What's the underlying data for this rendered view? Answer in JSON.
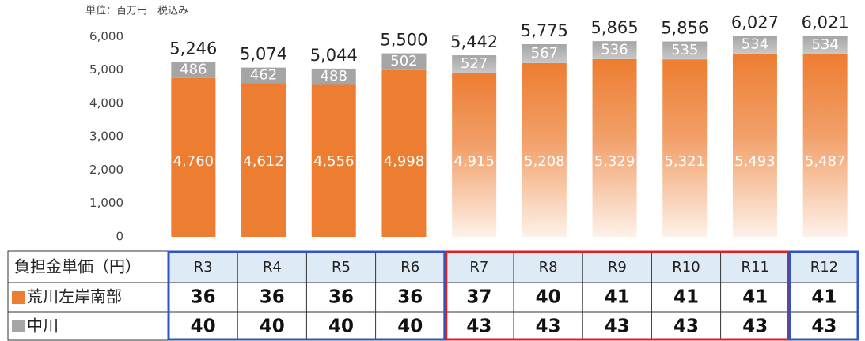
{
  "chart_data": {
    "type": "stacked_bar",
    "unit_note": "単位：百万円　税込み",
    "categories": [
      "R3",
      "R4",
      "R5",
      "R6",
      "R7",
      "R8",
      "R9",
      "R10",
      "R11",
      "R12"
    ],
    "series": [
      {
        "name": "荒川左岸南部",
        "color": "#ed7d31",
        "values": [
          4760,
          4612,
          4556,
          4998,
          4915,
          5208,
          5329,
          5321,
          5493,
          5487
        ],
        "value_labels": [
          "4,760",
          "4,612",
          "4,556",
          "4,998",
          "4,915",
          "5,208",
          "5,329",
          "5,321",
          "5,493",
          "5,487"
        ]
      },
      {
        "name": "中川",
        "color": "#a5a5a5",
        "values": [
          486,
          462,
          488,
          502,
          527,
          567,
          536,
          535,
          534,
          534
        ]
      }
    ],
    "totals": [
      5246,
      5074,
      5044,
      5500,
      5442,
      5775,
      5865,
      5856,
      6027,
      6021
    ],
    "total_labels": [
      "5,246",
      "5,074",
      "5,044",
      "5,500",
      "5,442",
      "5,775",
      "5,865",
      "5,856",
      "6,027",
      "6,021"
    ],
    "faded": [
      false,
      false,
      false,
      false,
      true,
      true,
      true,
      true,
      true,
      true
    ],
    "ylim": [
      0,
      7100
    ],
    "yticks": [
      0,
      {
        "value": 1000,
        "label": "1,000"
      },
      {
        "value": 2000,
        "label": "2,000"
      },
      {
        "value": 3000,
        "label": "3,000"
      },
      {
        "value": 4000,
        "label": "4,000"
      },
      {
        "value": 5000,
        "label": "5,000"
      },
      {
        "value": 6000,
        "label": "6,000"
      }
    ]
  },
  "table": {
    "header": "負担金単価（円）",
    "rows": [
      [
        36,
        36,
        36,
        36,
        37,
        40,
        41,
        41,
        41,
        41
      ],
      [
        40,
        40,
        40,
        40,
        43,
        43,
        43,
        43,
        43,
        43
      ]
    ]
  }
}
